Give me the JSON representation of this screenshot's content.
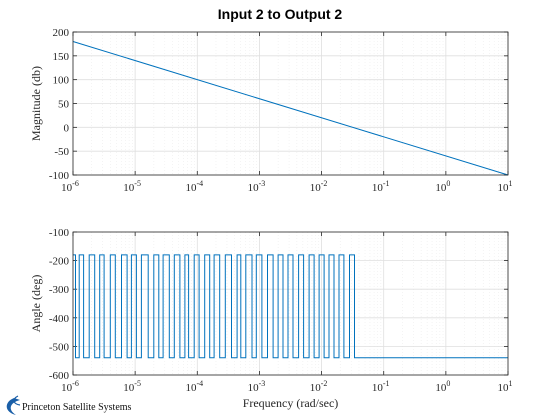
{
  "title": "Input 2 to Output 2",
  "logo": {
    "text": "Princeton Satellite Systems"
  },
  "colors": {
    "line": "#0072BD",
    "grid": "#dfdfdf",
    "axes": "#262626"
  },
  "chart_data": [
    {
      "type": "line",
      "panel": "magnitude",
      "xscale": "log",
      "xlim": [
        1e-06,
        10
      ],
      "ylim": [
        -100,
        200
      ],
      "xlabel": "",
      "ylabel": "Magnitude (db)",
      "grid": true,
      "yticks": [
        "200",
        "150",
        "100",
        "50",
        "0",
        "-50",
        "-100"
      ],
      "xtick_bases": [
        "10",
        "10",
        "10",
        "10",
        "10",
        "10",
        "10",
        "10"
      ],
      "xtick_exps": [
        "-6",
        "-5",
        "-4",
        "-3",
        "-2",
        "-1",
        "0",
        "1"
      ],
      "series": [
        {
          "x": [
            1e-06,
            10
          ],
          "y": [
            180,
            -100
          ]
        }
      ]
    },
    {
      "type": "line",
      "panel": "phase",
      "xscale": "log",
      "xlim": [
        1e-06,
        10
      ],
      "ylim": [
        -600,
        -100
      ],
      "xlabel": "Frequency (rad/sec)",
      "ylabel": "Angle (deg)",
      "grid": true,
      "yticks": [
        "-100",
        "-200",
        "-300",
        "-400",
        "-500",
        "-600"
      ],
      "xtick_bases": [
        "10",
        "10",
        "10",
        "10",
        "10",
        "10",
        "10",
        "10"
      ],
      "xtick_exps": [
        "-6",
        "-5",
        "-4",
        "-3",
        "-2",
        "-1",
        "0",
        "1"
      ],
      "series": [
        {
          "upper": -180,
          "lower": -540,
          "toggle_x_log10": [
            -5.96,
            -5.9,
            -5.83,
            -5.74,
            -5.65,
            -5.57,
            -5.5,
            -5.4,
            -5.32,
            -5.22,
            -5.13,
            -5.06,
            -4.98,
            -4.9,
            -4.79,
            -4.7,
            -4.62,
            -4.55,
            -4.45,
            -4.37,
            -4.28,
            -4.2,
            -4.14,
            -4.05,
            -3.97,
            -3.88,
            -3.8,
            -3.73,
            -3.64,
            -3.55,
            -3.45,
            -3.36,
            -3.3,
            -3.22,
            -3.12,
            -3.05,
            -2.96,
            -2.87,
            -2.78,
            -2.7,
            -2.62,
            -2.54,
            -2.46,
            -2.37,
            -2.29,
            -2.2,
            -2.12,
            -2.04,
            -1.96,
            -1.88,
            -1.8,
            -1.72,
            -1.64,
            -1.55,
            -1.47
          ],
          "final": {
            "from_log10": -1.45,
            "to_log10": 1,
            "y": -540
          }
        }
      ]
    }
  ]
}
